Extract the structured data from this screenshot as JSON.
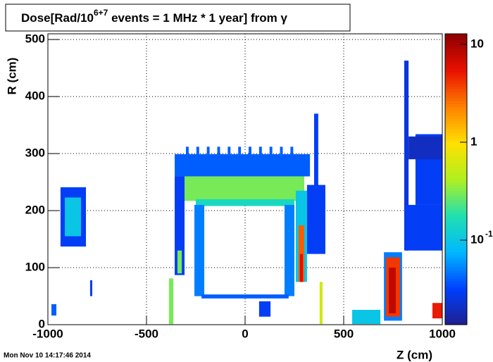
{
  "chart_data": {
    "type": "heatmap",
    "title": {
      "text": "Dose[Rad/10",
      "sup": "6+7",
      "tail": " events = 1 MHz * 1 year] from γ"
    },
    "xlabel": "Z (cm)",
    "ylabel": "R (cm)",
    "timestamp": "Mon Nov 10 14:17:46 2014",
    "xlim": [
      -1000,
      1000
    ],
    "ylim": [
      0,
      510
    ],
    "xticks": [
      -1000,
      -500,
      0,
      500,
      1000
    ],
    "yticks": [
      0,
      100,
      200,
      300,
      400,
      500
    ],
    "zlim": [
      0.0137,
      12.8
    ],
    "zlog": true,
    "zticks": [
      10,
      1,
      {
        "value": 0.1,
        "label": "10",
        "exponent": "-1"
      }
    ],
    "grid": true,
    "palette": [
      "#1f1f8f",
      "#0040ff",
      "#00b8ff",
      "#20e0b0",
      "#b0f020",
      "#ffe000",
      "#ff8000",
      "#e81000",
      "#8c0000"
    ],
    "cells": [
      {
        "z": [
          -936,
          -807
        ],
        "r": [
          137,
          241
        ],
        "value": 0.03
      },
      {
        "z": [
          -914,
          -832
        ],
        "r": [
          155,
          223
        ],
        "value": 0.1
      },
      {
        "z": [
          -786,
          -775
        ],
        "r": [
          50,
          78
        ],
        "value": 0.03
      },
      {
        "z": [
          -982,
          -957
        ],
        "r": [
          16,
          36
        ],
        "value": 0.04
      },
      {
        "z": [
          -357,
          329
        ],
        "r": [
          260,
          299
        ],
        "value": 0.04
      },
      {
        "z": [
          -300,
          -286
        ],
        "r": [
          298,
          312
        ],
        "value": 0.04
      },
      {
        "z": [
          -247,
          -233
        ],
        "r": [
          298,
          312
        ],
        "value": 0.04
      },
      {
        "z": [
          -194,
          -180
        ],
        "r": [
          298,
          312
        ],
        "value": 0.04
      },
      {
        "z": [
          -141,
          -127
        ],
        "r": [
          298,
          312
        ],
        "value": 0.04
      },
      {
        "z": [
          -88,
          -74
        ],
        "r": [
          298,
          312
        ],
        "value": 0.04
      },
      {
        "z": [
          -35,
          -21
        ],
        "r": [
          298,
          312
        ],
        "value": 0.04
      },
      {
        "z": [
          18,
          32
        ],
        "r": [
          298,
          312
        ],
        "value": 0.04
      },
      {
        "z": [
          71,
          85
        ],
        "r": [
          298,
          312
        ],
        "value": 0.04
      },
      {
        "z": [
          124,
          138
        ],
        "r": [
          298,
          312
        ],
        "value": 0.04
      },
      {
        "z": [
          177,
          191
        ],
        "r": [
          298,
          312
        ],
        "value": 0.04
      },
      {
        "z": [
          230,
          244
        ],
        "r": [
          298,
          312
        ],
        "value": 0.04
      },
      {
        "z": [
          -307,
          300
        ],
        "r": [
          217,
          260
        ],
        "value": 0.3
      },
      {
        "z": [
          -250,
          250
        ],
        "r": [
          208,
          220
        ],
        "value": 0.15
      },
      {
        "z": [
          -357,
          -307
        ],
        "r": [
          87,
          260
        ],
        "value": 0.03
      },
      {
        "z": [
          -343,
          -321
        ],
        "r": [
          90,
          130
        ],
        "value": 0.3
      },
      {
        "z": [
          257,
          314
        ],
        "r": [
          75,
          235
        ],
        "value": 0.1
      },
      {
        "z": [
          271,
          300
        ],
        "r": [
          75,
          174
        ],
        "value": 3
      },
      {
        "z": [
          278,
          293
        ],
        "r": [
          75,
          124
        ],
        "value": 6
      },
      {
        "z": [
          314,
          407
        ],
        "r": [
          124,
          245
        ],
        "value": 0.03
      },
      {
        "z": [
          350,
          371
        ],
        "r": [
          210,
          370
        ],
        "value": 0.03
      },
      {
        "z": [
          -257,
          -207
        ],
        "r": [
          50,
          210
        ],
        "value": 0.05
      },
      {
        "z": [
          200,
          250
        ],
        "r": [
          50,
          210
        ],
        "value": 0.05
      },
      {
        "z": [
          -221,
          221
        ],
        "r": [
          46,
          53
        ],
        "value": 0.04
      },
      {
        "z": [
          807,
          829
        ],
        "r": [
          130,
          463
        ],
        "value": 0.025
      },
      {
        "z": [
          864,
          1000
        ],
        "r": [
          210,
          334
        ],
        "value": 0.03
      },
      {
        "z": [
          829,
          1000
        ],
        "r": [
          290,
          330
        ],
        "value": 0.02
      },
      {
        "z": [
          814,
          1000
        ],
        "r": [
          130,
          210
        ],
        "value": 0.03
      },
      {
        "z": [
          704,
          796
        ],
        "r": [
          7,
          127
        ],
        "value": 0.05
      },
      {
        "z": [
          714,
          786
        ],
        "r": [
          14,
          118
        ],
        "value": 4
      },
      {
        "z": [
          729,
          764
        ],
        "r": [
          20,
          100
        ],
        "value": 8
      },
      {
        "z": [
          950,
          1000
        ],
        "r": [
          11,
          38
        ],
        "value": 5
      },
      {
        "z": [
          -386,
          -364
        ],
        "r": [
          1,
          81
        ],
        "value": 0.3
      },
      {
        "z": [
          71,
          129
        ],
        "r": [
          14,
          41
        ],
        "value": 0.03
      },
      {
        "z": [
          378,
          393
        ],
        "r": [
          1,
          75
        ],
        "value": 0.6
      },
      {
        "z": [
          543,
          686
        ],
        "r": [
          1,
          26
        ],
        "value": 0.1
      }
    ]
  }
}
